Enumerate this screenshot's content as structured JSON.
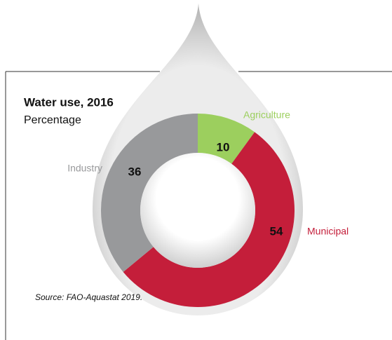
{
  "chart_data": {
    "type": "donut",
    "title": "Water use, 2016",
    "subtitle": "Percentage",
    "categories": [
      "Agriculture",
      "Municipal",
      "Industry"
    ],
    "values": [
      10,
      54,
      36
    ],
    "colors": [
      "#9ccf5e",
      "#c41e3a",
      "#98999b"
    ],
    "source": "Source: FAO-Aquastat 2019."
  }
}
